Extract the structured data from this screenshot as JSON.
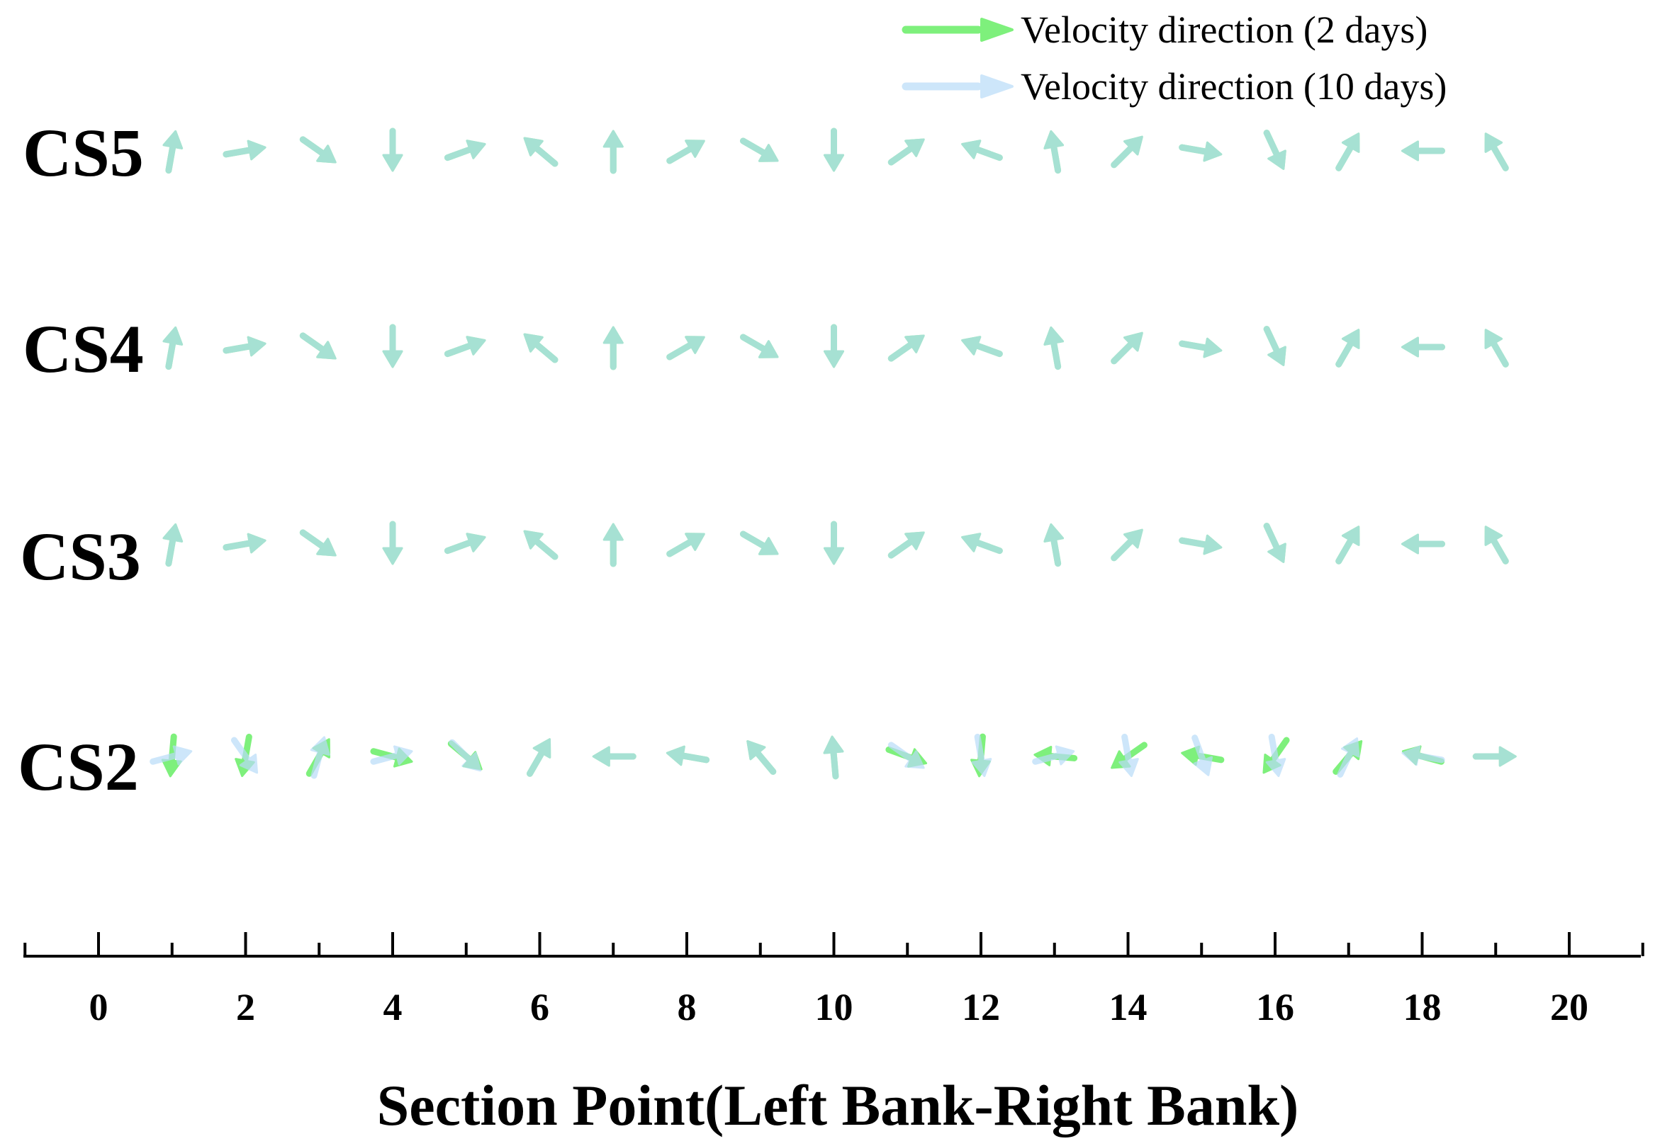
{
  "chart_data": {
    "type": "quiver",
    "xlabel": "Section Point(Left Bank-Right Bank)",
    "xlim": [
      -1,
      21
    ],
    "xticks": [
      0,
      2,
      4,
      6,
      8,
      10,
      12,
      14,
      16,
      18,
      20
    ],
    "rows": [
      "CS5",
      "CS4",
      "CS3",
      "CS2"
    ],
    "x": [
      1,
      2,
      3,
      4,
      5,
      6,
      7,
      8,
      9,
      10,
      11,
      12,
      13,
      14,
      15,
      16,
      17,
      18,
      19
    ],
    "legend": {
      "position": "top-right"
    },
    "series": [
      {
        "name": "Velocity direction (2 days)",
        "color": "#7ef07c",
        "angles_deg": {
          "CS5": [
            80,
            10,
            -35,
            -90,
            20,
            140,
            90,
            30,
            -30,
            -90,
            35,
            160,
            100,
            45,
            -10,
            -65,
            60,
            180,
            120
          ],
          "CS4": [
            80,
            10,
            -35,
            -90,
            20,
            140,
            90,
            30,
            -30,
            -90,
            35,
            160,
            100,
            45,
            -10,
            -65,
            60,
            180,
            120
          ],
          "CS3": [
            80,
            10,
            -35,
            -90,
            20,
            140,
            90,
            30,
            -30,
            -90,
            35,
            160,
            100,
            45,
            -10,
            -65,
            60,
            180,
            120
          ],
          "CS2": [
            -95,
            -100,
            60,
            -15,
            -40,
            60,
            180,
            170,
            130,
            95,
            -20,
            -95,
            175,
            -145,
            170,
            -125,
            50,
            165,
            0
          ]
        }
      },
      {
        "name": "Velocity direction (10 days)",
        "color": "#b8dcf8",
        "angles_deg": {
          "CS5": [
            80,
            10,
            -35,
            -90,
            20,
            140,
            90,
            30,
            -30,
            -90,
            35,
            160,
            100,
            45,
            -10,
            -65,
            60,
            180,
            120
          ],
          "CS4": [
            80,
            10,
            -35,
            -90,
            20,
            140,
            90,
            30,
            -30,
            -90,
            35,
            160,
            100,
            45,
            -10,
            -65,
            60,
            180,
            120
          ],
          "CS3": [
            80,
            10,
            -35,
            -90,
            20,
            140,
            90,
            30,
            -30,
            -90,
            35,
            160,
            100,
            45,
            -10,
            -65,
            60,
            180,
            120
          ],
          "CS2": [
            15,
            -55,
            75,
            15,
            -45,
            60,
            180,
            170,
            130,
            95,
            -35,
            -80,
            15,
            -80,
            -70,
            -80,
            65,
            170,
            0
          ]
        }
      }
    ]
  }
}
